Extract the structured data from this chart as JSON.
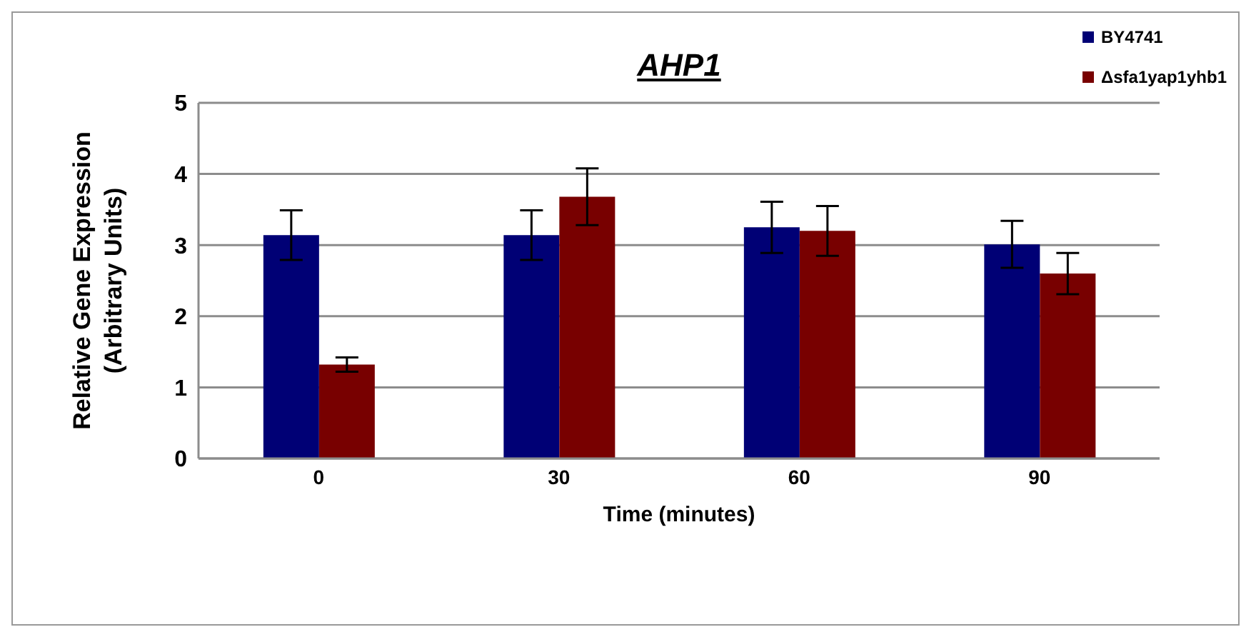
{
  "chart_data": {
    "type": "bar",
    "title": "AHP1",
    "xlabel": "Time (minutes)",
    "ylabel": "Relative Gene Expression (Arbitrary Units)",
    "categories": [
      "0",
      "30",
      "60",
      "90"
    ],
    "series": [
      {
        "name": "BY4741",
        "color": "#000075",
        "values": [
          3.14,
          3.14,
          3.25,
          3.01
        ],
        "errors": [
          0.35,
          0.35,
          0.36,
          0.33
        ]
      },
      {
        "name": "Δsfa1yap1yhb1",
        "color": "#780000",
        "values": [
          1.32,
          3.68,
          3.2,
          2.6
        ],
        "errors": [
          0.1,
          0.4,
          0.35,
          0.29
        ]
      }
    ],
    "ylim": [
      0,
      5
    ],
    "yticks": [
      0,
      1,
      2,
      3,
      4,
      5
    ],
    "grid": "y",
    "legend": "top right"
  }
}
